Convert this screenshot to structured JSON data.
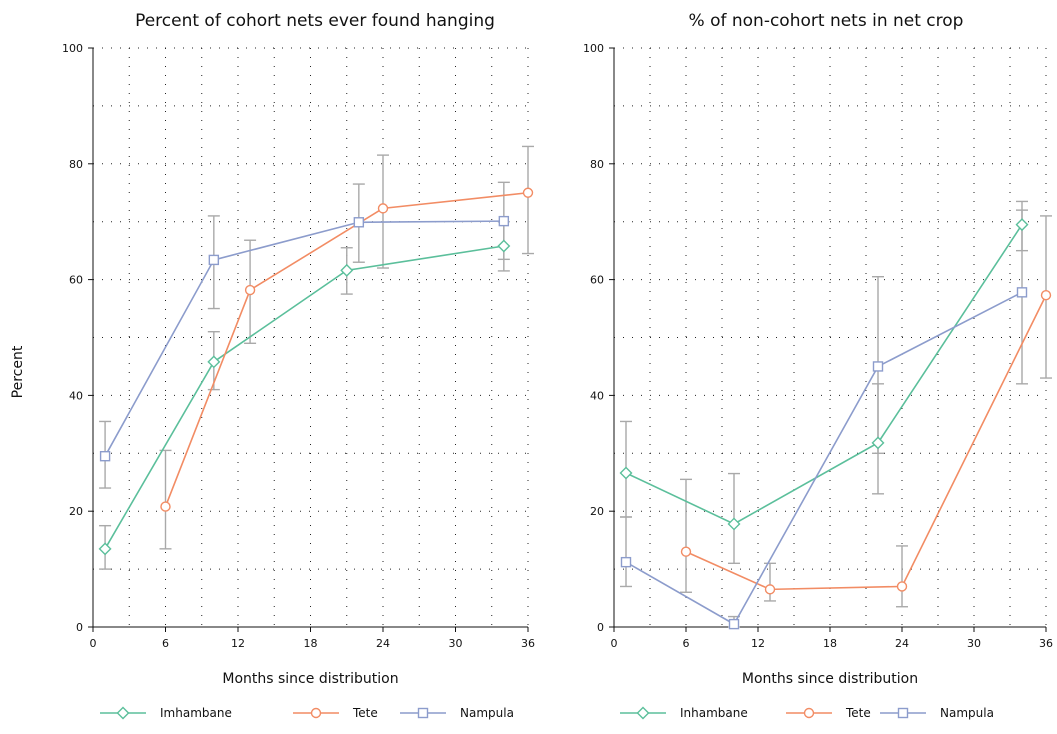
{
  "colors": {
    "Imhambane": "#5bbf9b",
    "Tete": "#f28c64",
    "Nampula": "#8c9ccc",
    "errorbar": "#a9a9a9"
  },
  "ylabel": "Percent",
  "chart_data": [
    {
      "type": "line",
      "title": "Percent of cohort nets ever found hanging",
      "xlabel": "Months since distribution",
      "ylabel": "Percent",
      "xlim": [
        0,
        36
      ],
      "ylim": [
        0,
        100
      ],
      "xticks": [
        0,
        6,
        12,
        18,
        24,
        30,
        36
      ],
      "xtick_labels": [
        "0",
        "6",
        "12",
        "18",
        "24",
        "30",
        "36"
      ],
      "yticks": [
        0,
        20,
        40,
        60,
        80,
        100
      ],
      "ytick_labels": [
        "0",
        "20",
        "40",
        "60",
        "80",
        "100"
      ],
      "grid": true,
      "legend_position": "bottom",
      "series": [
        {
          "name": "Imhambane",
          "marker": "diamond",
          "points": [
            {
              "x": 1,
              "y": 13.5,
              "lo": 10,
              "hi": 17.5
            },
            {
              "x": 10,
              "y": 45.8,
              "lo": 41,
              "hi": 51
            },
            {
              "x": 21,
              "y": 61.6,
              "lo": 57.5,
              "hi": 65.5
            },
            {
              "x": 34,
              "y": 65.8,
              "lo": 61.5,
              "hi": 70
            }
          ]
        },
        {
          "name": "Tete",
          "marker": "circle",
          "points": [
            {
              "x": 6,
              "y": 20.8,
              "lo": 13.5,
              "hi": 30.5
            },
            {
              "x": 13,
              "y": 58.2,
              "lo": 49,
              "hi": 66.8
            },
            {
              "x": 24,
              "y": 72.3,
              "lo": 62,
              "hi": 81.5
            },
            {
              "x": 36,
              "y": 75,
              "lo": 64.5,
              "hi": 83
            }
          ]
        },
        {
          "name": "Nampula",
          "marker": "square",
          "points": [
            {
              "x": 1,
              "y": 29.5,
              "lo": 24,
              "hi": 35.5
            },
            {
              "x": 10,
              "y": 63.4,
              "lo": 55,
              "hi": 71
            },
            {
              "x": 22,
              "y": 69.9,
              "lo": 63,
              "hi": 76.5
            },
            {
              "x": 34,
              "y": 70.1,
              "lo": 63.5,
              "hi": 76.8
            }
          ]
        }
      ]
    },
    {
      "type": "line",
      "title": "% of non-cohort nets in net crop",
      "xlabel": "Months since distribution",
      "xlim": [
        0,
        36
      ],
      "ylim": [
        0,
        100
      ],
      "xticks": [
        0,
        6,
        12,
        18,
        24,
        30,
        36
      ],
      "xtick_labels": [
        "0",
        "6",
        "12",
        "18",
        "24",
        "30",
        "36"
      ],
      "yticks": [
        0,
        20,
        40,
        60,
        80,
        100
      ],
      "ytick_labels": [
        "0",
        "20",
        "40",
        "60",
        "80",
        "100"
      ],
      "grid": true,
      "legend_position": "bottom",
      "series": [
        {
          "name": "Inhambane",
          "marker": "diamond",
          "points": [
            {
              "x": 1,
              "y": 26.6,
              "lo": 19,
              "hi": 35.5
            },
            {
              "x": 10,
              "y": 17.8,
              "lo": 11,
              "hi": 26.5
            },
            {
              "x": 22,
              "y": 31.8,
              "lo": 23,
              "hi": 42
            },
            {
              "x": 34,
              "y": 69.5,
              "lo": 65,
              "hi": 73.5
            }
          ]
        },
        {
          "name": "Tete",
          "marker": "circle",
          "points": [
            {
              "x": 6,
              "y": 13,
              "lo": 6,
              "hi": 25.5
            },
            {
              "x": 13,
              "y": 6.5,
              "lo": 4.5,
              "hi": 11
            },
            {
              "x": 24,
              "y": 7,
              "lo": 3.5,
              "hi": 14
            },
            {
              "x": 36,
              "y": 57.3,
              "lo": 43,
              "hi": 71
            }
          ]
        },
        {
          "name": "Nampula",
          "marker": "square",
          "points": [
            {
              "x": 1,
              "y": 11.2,
              "lo": 7,
              "hi": 19
            },
            {
              "x": 10,
              "y": 0.5,
              "lo": 0,
              "hi": 1.8
            },
            {
              "x": 22,
              "y": 45,
              "lo": 30,
              "hi": 60.5
            },
            {
              "x": 34,
              "y": 57.8,
              "lo": 42,
              "hi": 72
            }
          ]
        }
      ]
    }
  ]
}
